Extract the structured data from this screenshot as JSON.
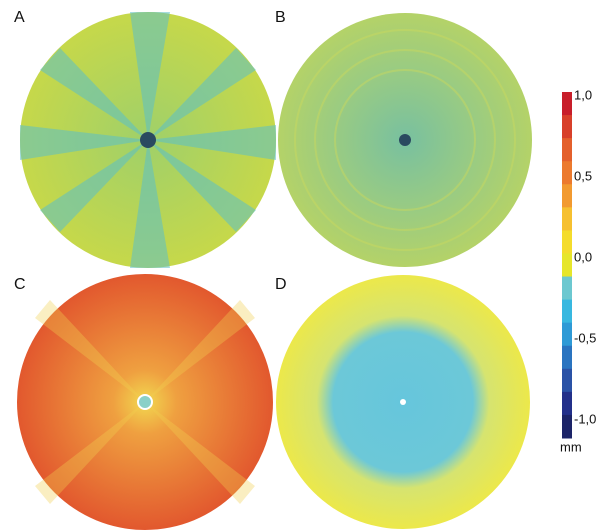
{
  "panels": [
    {
      "label": "A"
    },
    {
      "label": "B"
    },
    {
      "label": "C"
    },
    {
      "label": "D"
    }
  ],
  "colorbar": {
    "colors": [
      "#c81e2a",
      "#d8402a",
      "#e4602c",
      "#ec7a2e",
      "#f29a30",
      "#f6c030",
      "#f4dc2c",
      "#e6e62a",
      "#6cc8d0",
      "#38b8e0",
      "#2e9ad6",
      "#2a74c0",
      "#2a52a6",
      "#23308a",
      "#1c2468"
    ],
    "ticks": [
      "1,0",
      "0,5",
      "0,0",
      "-0,5",
      "-1,0"
    ],
    "unit": "mm"
  }
}
